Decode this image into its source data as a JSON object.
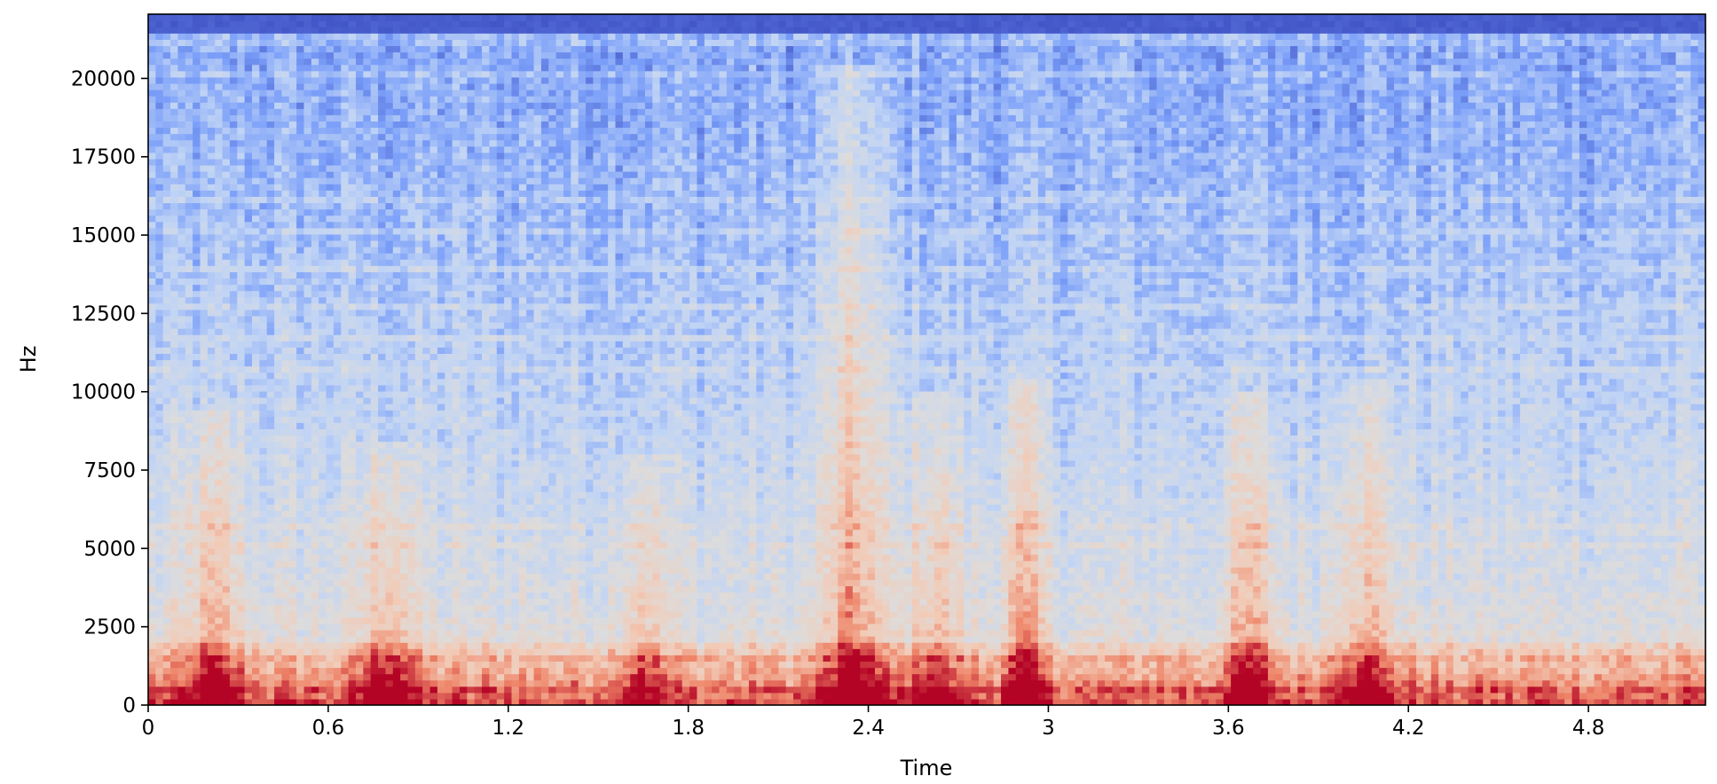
{
  "chart_data": {
    "type": "heatmap",
    "title": "",
    "xlabel": "Time",
    "ylabel": "Hz",
    "xlim": [
      0,
      5.19
    ],
    "ylim": [
      0,
      22050
    ],
    "x_ticks": [
      {
        "value": 0,
        "label": "0"
      },
      {
        "value": 0.6,
        "label": "0.6"
      },
      {
        "value": 1.2,
        "label": "1.2"
      },
      {
        "value": 1.8,
        "label": "1.8"
      },
      {
        "value": 2.4,
        "label": "2.4"
      },
      {
        "value": 3.0,
        "label": "3"
      },
      {
        "value": 3.6,
        "label": "3.6"
      },
      {
        "value": 4.2,
        "label": "4.2"
      },
      {
        "value": 4.8,
        "label": "4.8"
      }
    ],
    "y_ticks": [
      {
        "value": 0,
        "label": "0"
      },
      {
        "value": 2500,
        "label": "2500"
      },
      {
        "value": 5000,
        "label": "5000"
      },
      {
        "value": 7500,
        "label": "7500"
      },
      {
        "value": 10000,
        "label": "10000"
      },
      {
        "value": 12500,
        "label": "12500"
      },
      {
        "value": 15000,
        "label": "15000"
      },
      {
        "value": 17500,
        "label": "17500"
      },
      {
        "value": 20000,
        "label": "20000"
      }
    ],
    "colormap": [
      "#3b4cc0",
      "#7b9ff9",
      "#c0d4f5",
      "#dddcdc",
      "#f2cbb7",
      "#ee8468",
      "#b40426"
    ],
    "grid": false,
    "energy_model": {
      "base_low_frequency_hz": 2000,
      "noise_floor_top_hz": 21400,
      "bursts": [
        {
          "t": 0.22,
          "f_max": 9500,
          "w": 0.1,
          "s": 0.55
        },
        {
          "t": 0.8,
          "f_max": 8500,
          "w": 0.09,
          "s": 0.6
        },
        {
          "t": 1.65,
          "f_max": 8000,
          "w": 0.08,
          "s": 0.45
        },
        {
          "t": 2.35,
          "f_max": 20500,
          "w": 0.1,
          "s": 0.7
        },
        {
          "t": 2.62,
          "f_max": 10000,
          "w": 0.09,
          "s": 0.5
        },
        {
          "t": 2.92,
          "f_max": 10500,
          "w": 0.07,
          "s": 0.65
        },
        {
          "t": 3.67,
          "f_max": 10000,
          "w": 0.08,
          "s": 0.6
        },
        {
          "t": 4.05,
          "f_max": 10500,
          "w": 0.1,
          "s": 0.55
        }
      ]
    }
  }
}
